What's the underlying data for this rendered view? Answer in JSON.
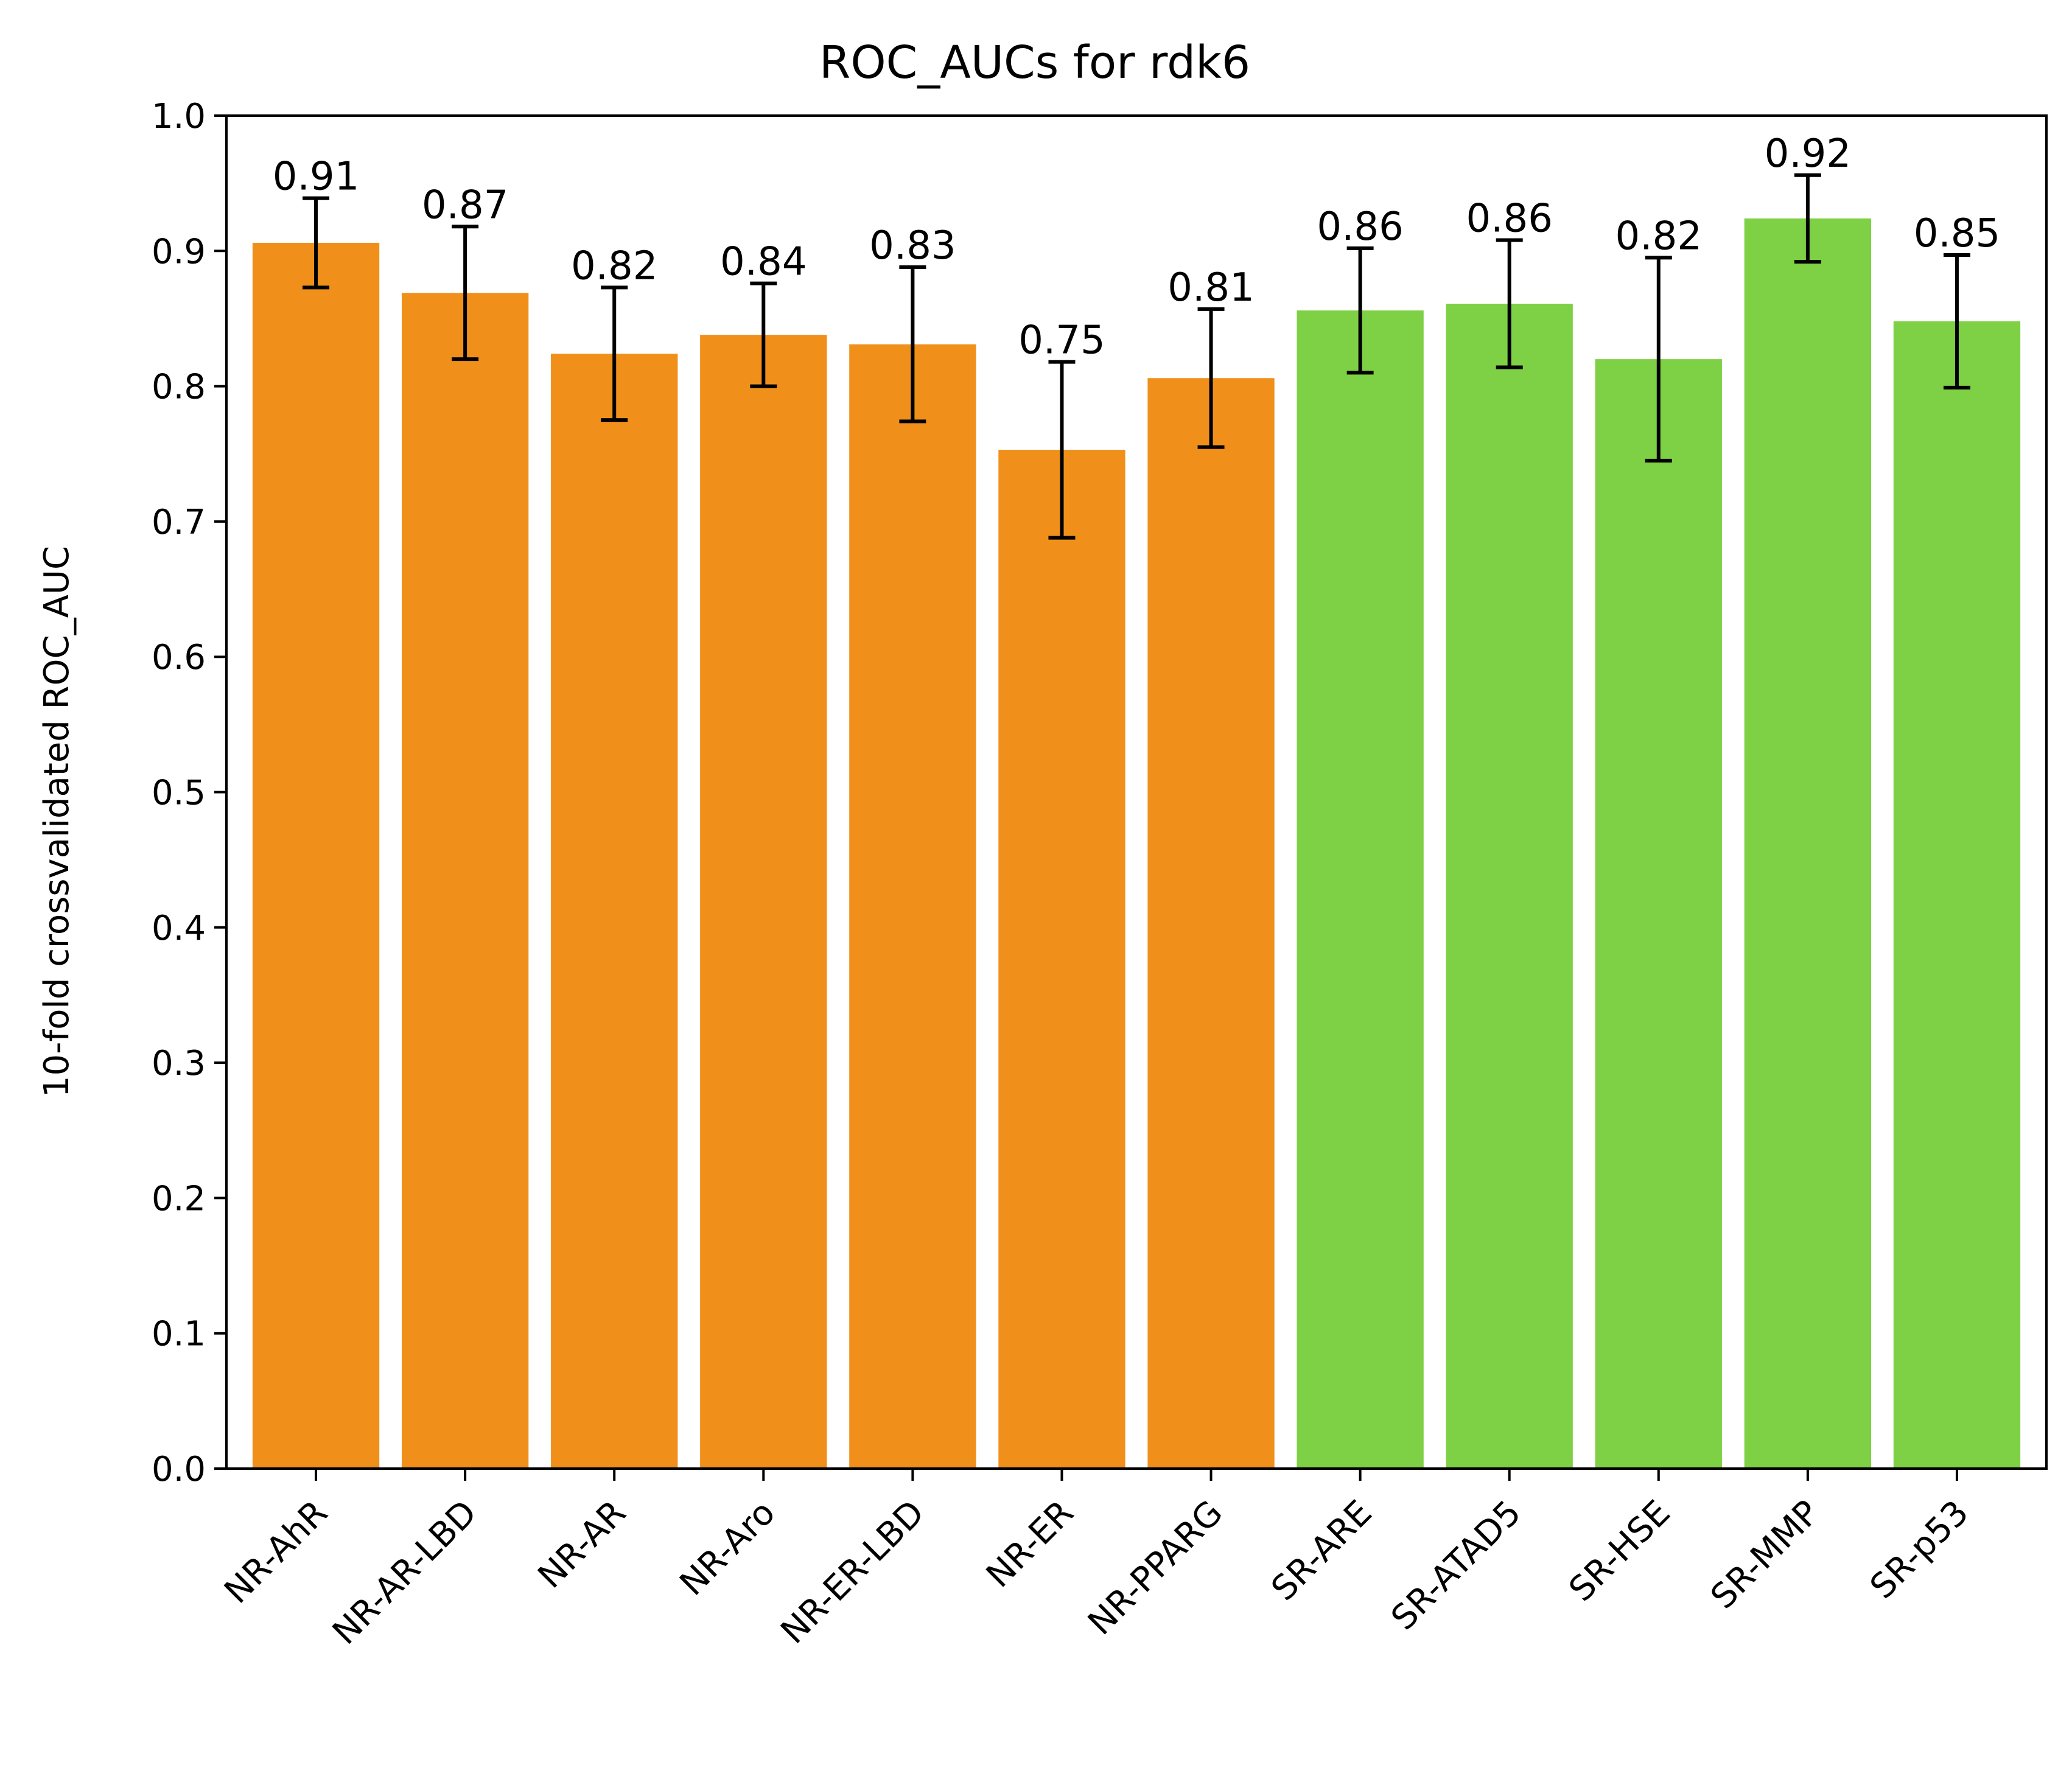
{
  "chart_data": {
    "type": "bar",
    "title": "ROC_AUCs for rdk6",
    "xlabel": "",
    "ylabel": "10-fold crossvalidated ROC_AUC",
    "ylim": [
      0.0,
      1.0
    ],
    "yticks": [
      "0.0",
      "0.1",
      "0.2",
      "0.3",
      "0.4",
      "0.5",
      "0.6",
      "0.7",
      "0.8",
      "0.9",
      "1.0"
    ],
    "grid": false,
    "categories": [
      "NR-AhR",
      "NR-AR-LBD",
      "NR-AR",
      "NR-Aro",
      "NR-ER-LBD",
      "NR-ER",
      "NR-PPARG",
      "SR-ARE",
      "SR-ATAD5",
      "SR-HSE",
      "SR-MMP",
      "SR-p53"
    ],
    "values": [
      0.906,
      0.869,
      0.824,
      0.838,
      0.831,
      0.753,
      0.806,
      0.856,
      0.861,
      0.82,
      0.924,
      0.848
    ],
    "errors": [
      0.033,
      0.049,
      0.049,
      0.038,
      0.057,
      0.065,
      0.051,
      0.046,
      0.047,
      0.075,
      0.032,
      0.049
    ],
    "data_labels": [
      "0.91",
      "0.87",
      "0.82",
      "0.84",
      "0.83",
      "0.75",
      "0.81",
      "0.86",
      "0.86",
      "0.82",
      "0.92",
      "0.85"
    ],
    "colors": [
      "#f0901a",
      "#f0901a",
      "#f0901a",
      "#f0901a",
      "#f0901a",
      "#f0901a",
      "#f0901a",
      "#7ed044",
      "#7ed044",
      "#7ed044",
      "#7ed044",
      "#7ed044"
    ]
  }
}
